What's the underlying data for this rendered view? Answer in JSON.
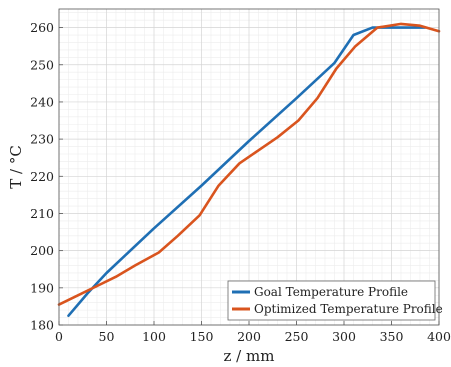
{
  "chart_data": {
    "type": "line",
    "title": "",
    "xlabel": "z / mm",
    "ylabel": "T / °C",
    "xlim": [
      0,
      400
    ],
    "ylim": [
      180,
      265
    ],
    "x_ticks": [
      0,
      50,
      100,
      150,
      200,
      250,
      300,
      350,
      400
    ],
    "y_ticks": [
      180,
      190,
      200,
      210,
      220,
      230,
      240,
      250,
      260
    ],
    "grid": "on (major and minor)",
    "legend_position": "bottom-right",
    "series": [
      {
        "name": "Goal Temperature Profile",
        "color": "#1f6fb4",
        "x": [
          10,
          30,
          50,
          100,
          150,
          200,
          250,
          290,
          310,
          330,
          350,
          370,
          385
        ],
        "y": [
          182.5,
          188.5,
          194,
          206,
          217.5,
          229.5,
          241,
          250.5,
          258,
          260,
          260,
          260,
          260
        ]
      },
      {
        "name": "Optimized Temperature Profile",
        "color": "#d9541e",
        "x": [
          0,
          20,
          40,
          60,
          80,
          105,
          125,
          148,
          168,
          190,
          210,
          230,
          252,
          272,
          292,
          312,
          335,
          360,
          380,
          400
        ],
        "y": [
          185.5,
          188,
          190.5,
          193,
          196,
          199.5,
          204,
          209.5,
          217.5,
          223.5,
          227,
          230.5,
          235,
          241,
          249,
          255,
          260,
          261,
          260.5,
          259
        ]
      }
    ]
  }
}
